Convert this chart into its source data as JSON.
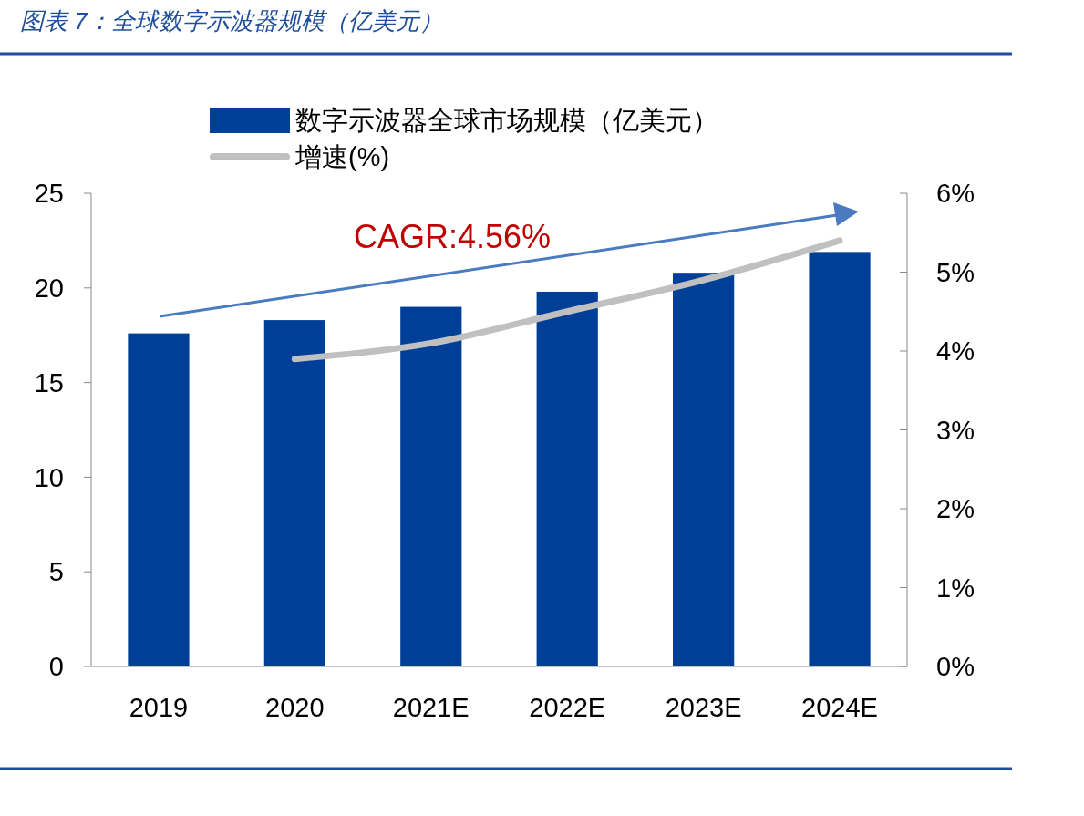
{
  "chart_data": {
    "type": "bar",
    "title": "图表 7：全球数字示波器规模（亿美元）",
    "categories": [
      "2019",
      "2020",
      "2021E",
      "2022E",
      "2023E",
      "2024E"
    ],
    "series": [
      {
        "name": "数字示波器全球市场规模（亿美元）",
        "color": "#003f98",
        "values": [
          17.6,
          18.3,
          19.0,
          19.8,
          20.8,
          21.9
        ]
      },
      {
        "name": "增速(%)",
        "type": "line",
        "axis": "y2",
        "color": "#c0c0c0",
        "values": [
          null,
          3.9,
          4.1,
          4.5,
          4.9,
          5.4
        ]
      }
    ],
    "ylim": [
      0,
      25
    ],
    "yticks": [
      0,
      5,
      10,
      15,
      20,
      25
    ],
    "y2lim": [
      0,
      6
    ],
    "y2ticks": [
      {
        "value": 0,
        "label": "0%"
      },
      {
        "value": 1,
        "label": "1%"
      },
      {
        "value": 2,
        "label": "2%"
      },
      {
        "value": 3,
        "label": "3%"
      },
      {
        "value": 4,
        "label": "4%"
      },
      {
        "value": 5,
        "label": "5%"
      },
      {
        "value": 6,
        "label": "6%"
      }
    ],
    "annotations": [
      "CAGR:4.56%"
    ],
    "legend": "top",
    "grid": false
  }
}
